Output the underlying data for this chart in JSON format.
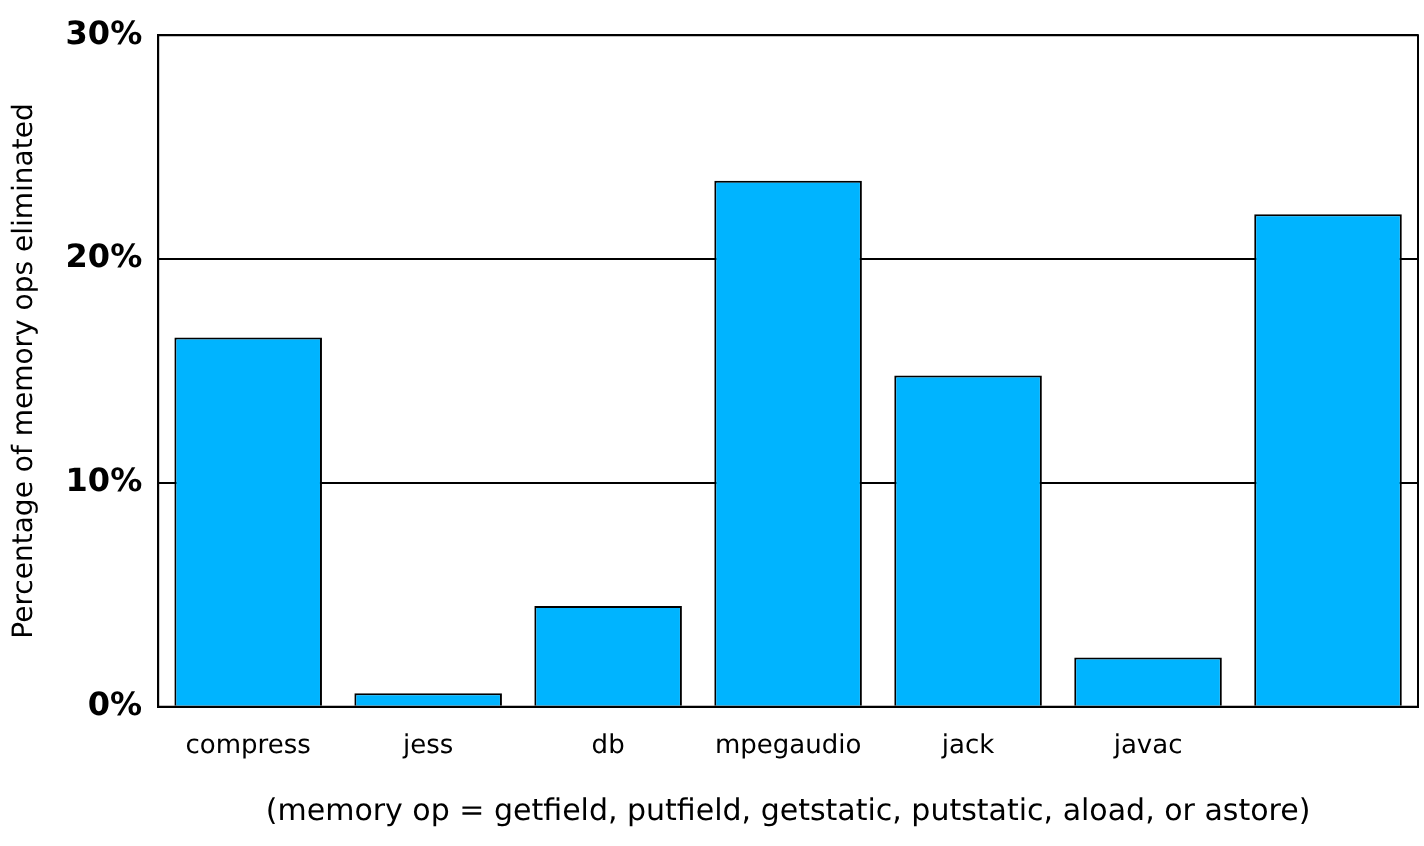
{
  "chart_data": {
    "type": "bar",
    "ylabel": "Percentage of memory ops eliminated",
    "xlabel": "(memory op = getfield, putfield, getstatic, putstatic, aload, or astore)",
    "categories": [
      "compress",
      "jess",
      "db",
      "mpegaudio",
      "jack",
      "javac",
      null
    ],
    "values": [
      16.5,
      0.6,
      4.5,
      23.5,
      14.8,
      2.2,
      22
    ],
    "color": "#00b4ff",
    "ylim": [
      0,
      30
    ],
    "yticks": [
      {
        "value": 0,
        "label": "0%"
      },
      {
        "value": 10,
        "label": "10%"
      },
      {
        "value": 20,
        "label": "20%"
      },
      {
        "value": 30,
        "label": "30%"
      }
    ],
    "grid": "y",
    "legend": false
  }
}
